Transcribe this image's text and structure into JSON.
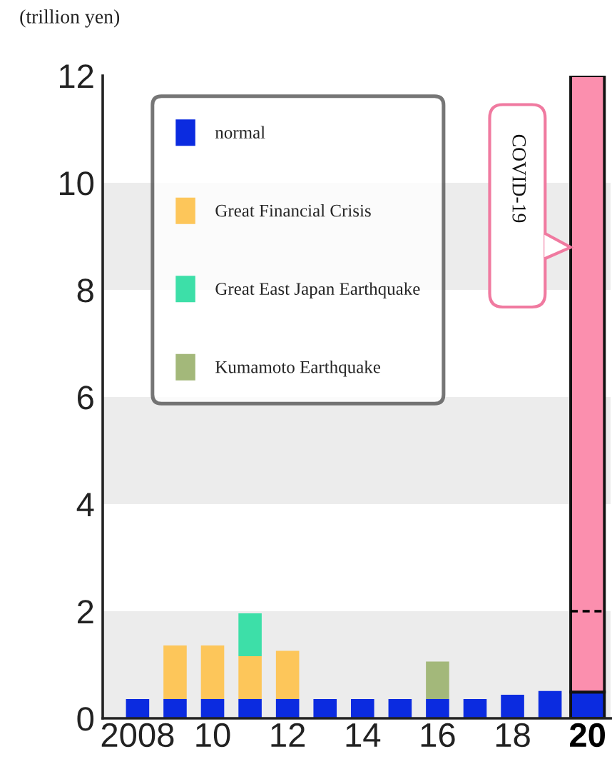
{
  "chart_data": {
    "type": "bar",
    "stacked": true,
    "ylabel": "(trillion yen)",
    "categories": [
      "2008",
      null,
      "10",
      null,
      "12",
      null,
      "14",
      null,
      "16",
      null,
      "18",
      null,
      "20"
    ],
    "series": [
      {
        "name": "normal",
        "color": "#0b2be0",
        "values": [
          0.36,
          0.36,
          0.36,
          0.36,
          0.36,
          0.36,
          0.36,
          0.36,
          0.36,
          0.36,
          0.44,
          0.51,
          0.49
        ]
      },
      {
        "name": "Great Financial Crisis",
        "color": "#fdc65a",
        "values": [
          null,
          1.0,
          1.0,
          0.8,
          0.9,
          null,
          null,
          null,
          null,
          null,
          null,
          null,
          null
        ]
      },
      {
        "name": "Great East Japan Earthquake",
        "color": "#3ddfa8",
        "values": [
          null,
          null,
          null,
          0.8,
          null,
          null,
          null,
          null,
          null,
          null,
          null,
          null,
          null
        ]
      },
      {
        "name": "Kumamoto Earthquake",
        "color": "#a3b87a",
        "values": [
          null,
          null,
          null,
          null,
          null,
          null,
          null,
          null,
          0.7,
          null,
          null,
          null,
          null
        ]
      },
      {
        "color": "#fb8fae",
        "values": [
          null,
          null,
          null,
          null,
          null,
          null,
          null,
          null,
          null,
          null,
          null,
          null,
          11.51
        ]
      }
    ],
    "ylim": [
      0,
      12
    ],
    "yticks": [
      0,
      2,
      4,
      6,
      8,
      10,
      12
    ],
    "bands": [
      {
        "axis": "y",
        "from": 0,
        "to": 2,
        "color": "#ececec"
      },
      {
        "axis": "y",
        "from": 4,
        "to": 6,
        "color": "#ececec"
      },
      {
        "axis": "y",
        "from": 8,
        "to": 10,
        "color": "#ececec"
      }
    ],
    "annotations": [
      "COVID-19"
    ],
    "legend": "top left"
  }
}
